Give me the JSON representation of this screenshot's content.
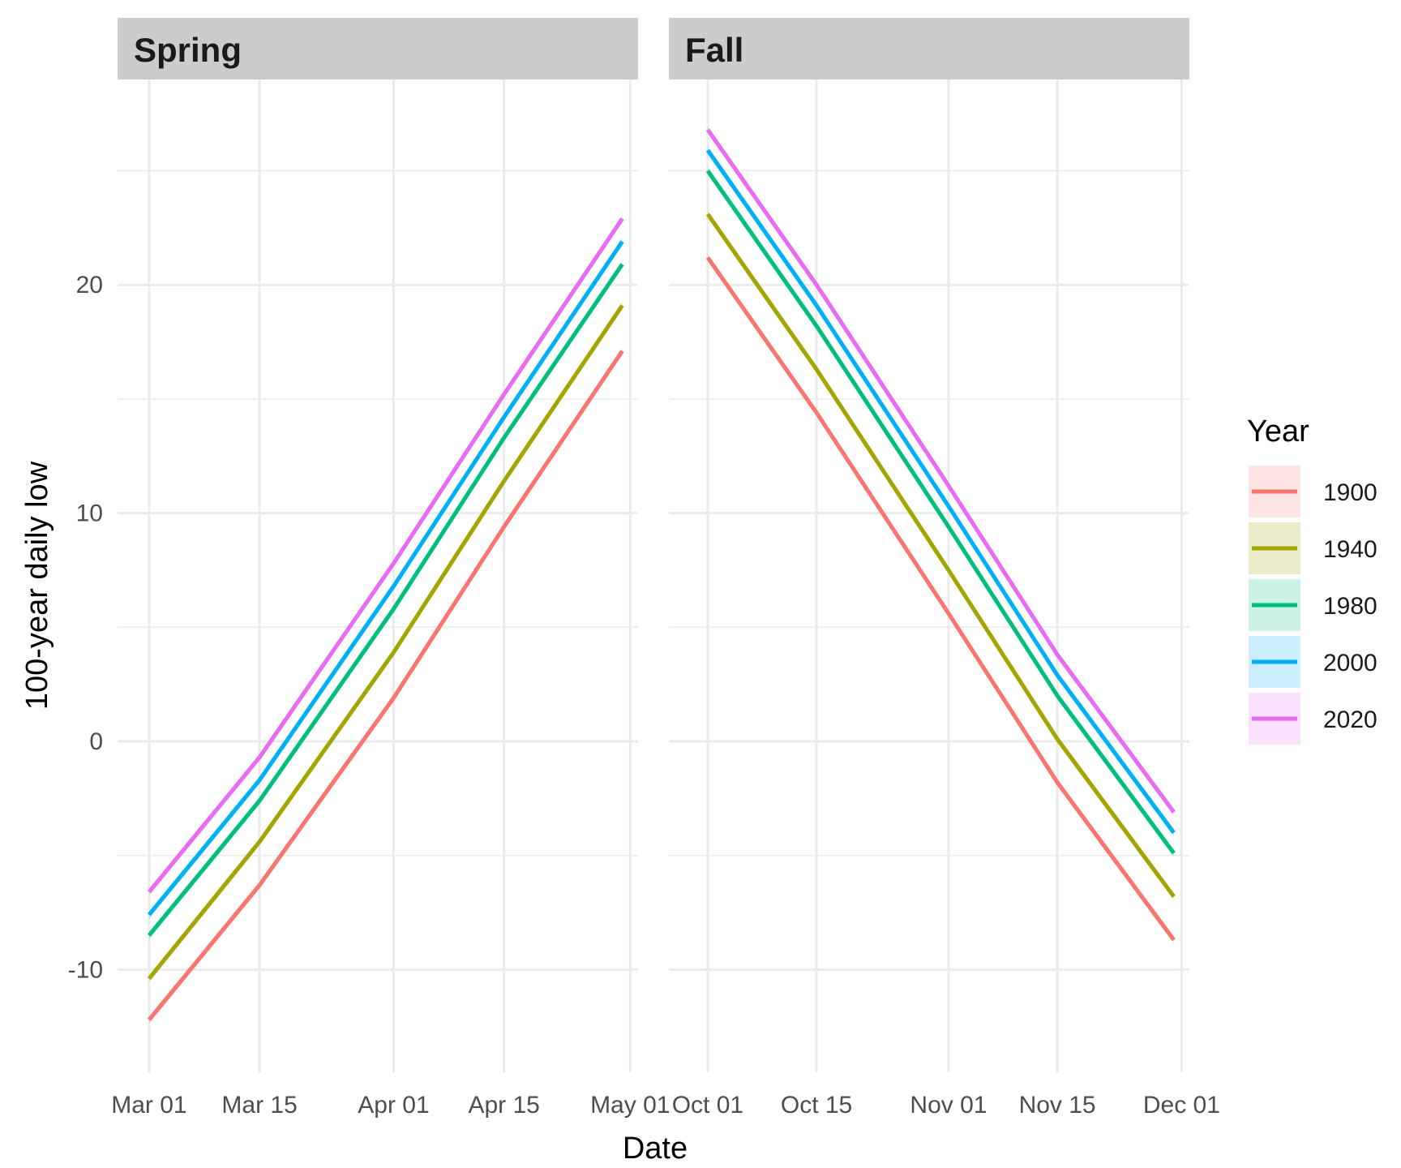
{
  "chart_data": {
    "type": "line",
    "xlabel": "Date",
    "ylabel": "100-year daily low",
    "ylim": [
      -14.5,
      29.0
    ],
    "yticks": [
      -10,
      0,
      10,
      20
    ],
    "grid": true,
    "legend": {
      "title": "Year",
      "placement": "right"
    },
    "panels": [
      {
        "title": "Spring",
        "xlim": [
          "2001-02-25",
          "2001-05-02"
        ],
        "xticks": [
          {
            "date": "2001-03-01",
            "label": "Mar 01"
          },
          {
            "date": "2001-03-15",
            "label": "Mar 15"
          },
          {
            "date": "2001-04-01",
            "label": "Apr 01"
          },
          {
            "date": "2001-04-15",
            "label": "Apr 15"
          },
          {
            "date": "2001-05-01",
            "label": "May 01"
          }
        ],
        "x": [
          "2001-03-01",
          "2001-03-15",
          "2001-04-01",
          "2001-04-15",
          "2001-04-30"
        ],
        "series": [
          {
            "name": "1900",
            "values": [
              -12.2,
              -6.3,
              1.9,
              9.4,
              17.1
            ]
          },
          {
            "name": "1940",
            "values": [
              -10.4,
              -4.4,
              3.9,
              11.4,
              19.1
            ]
          },
          {
            "name": "1980",
            "values": [
              -8.5,
              -2.6,
              5.8,
              13.3,
              20.9
            ]
          },
          {
            "name": "2000",
            "values": [
              -7.6,
              -1.7,
              6.8,
              14.2,
              21.9
            ]
          },
          {
            "name": "2020",
            "values": [
              -6.6,
              -0.7,
              7.8,
              15.2,
              22.9
            ]
          }
        ]
      },
      {
        "title": "Fall",
        "xlim": [
          "2001-09-26",
          "2001-12-02"
        ],
        "xticks": [
          {
            "date": "2001-10-01",
            "label": "Oct 01"
          },
          {
            "date": "2001-10-15",
            "label": "Oct 15"
          },
          {
            "date": "2001-11-01",
            "label": "Nov 01"
          },
          {
            "date": "2001-11-15",
            "label": "Nov 15"
          },
          {
            "date": "2001-12-01",
            "label": "Dec 01"
          }
        ],
        "x": [
          "2001-10-01",
          "2001-10-15",
          "2001-11-01",
          "2001-11-15",
          "2001-11-30"
        ],
        "series": [
          {
            "name": "1900",
            "values": [
              21.2,
              14.4,
              5.6,
              -1.8,
              -8.7
            ]
          },
          {
            "name": "1940",
            "values": [
              23.1,
              16.3,
              7.5,
              0.1,
              -6.8
            ]
          },
          {
            "name": "1980",
            "values": [
              25.0,
              18.2,
              9.4,
              2.0,
              -4.9
            ]
          },
          {
            "name": "2000",
            "values": [
              25.9,
              19.1,
              10.3,
              2.9,
              -4.0
            ]
          },
          {
            "name": "2020",
            "values": [
              26.8,
              20.0,
              11.2,
              3.8,
              -3.1
            ]
          }
        ]
      }
    ],
    "colors": {
      "1900": "#F8766D",
      "1940": "#A3A500",
      "1980": "#00BF7D",
      "2000": "#00B0F6",
      "2020": "#E76BF3"
    }
  }
}
